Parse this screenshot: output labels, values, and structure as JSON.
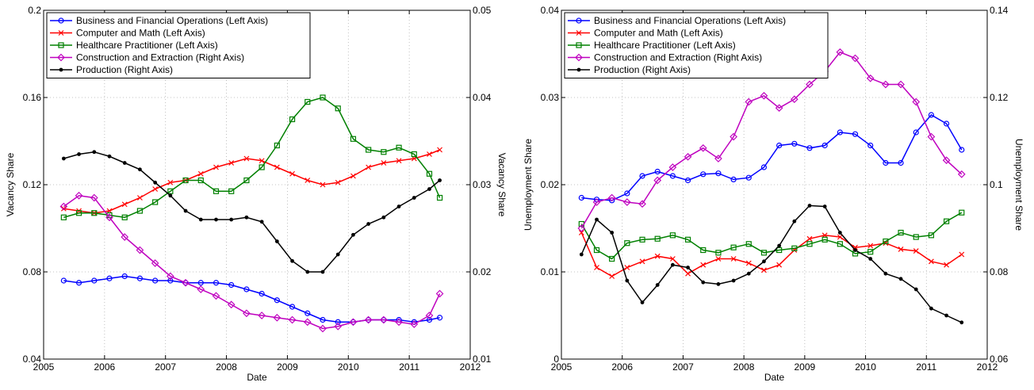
{
  "chart_data": [
    {
      "type": "line",
      "xlabel": "Date",
      "ylabel": "Vacancy Share",
      "y2label": "Vacancy Share",
      "xlim": [
        2005,
        2012
      ],
      "xticks": [
        2005,
        2006,
        2007,
        2008,
        2009,
        2010,
        2011,
        2012
      ],
      "ylim": [
        0.04,
        0.2
      ],
      "yticks": [
        0.04,
        0.08,
        0.12,
        0.16,
        0.2
      ],
      "y2lim": [
        0.01,
        0.05
      ],
      "y2ticks": [
        0.01,
        0.02,
        0.03,
        0.04,
        0.05
      ],
      "grid": true,
      "legend": "upper left",
      "x": [
        2005.33,
        2005.58,
        2005.83,
        2006.08,
        2006.33,
        2006.58,
        2006.83,
        2007.08,
        2007.33,
        2007.58,
        2007.83,
        2008.08,
        2008.33,
        2008.58,
        2008.83,
        2009.08,
        2009.33,
        2009.58,
        2009.83,
        2010.08,
        2010.33,
        2010.58,
        2010.83,
        2011.08,
        2011.33,
        2011.5
      ],
      "series": [
        {
          "name": "Business and Financial Operations (Left Axis)",
          "color": "#0000ff",
          "marker": "circle",
          "axis": "y",
          "values": [
            0.076,
            0.075,
            0.076,
            0.077,
            0.078,
            0.077,
            0.076,
            0.076,
            0.075,
            0.075,
            0.075,
            0.074,
            0.072,
            0.07,
            0.067,
            0.064,
            0.061,
            0.058,
            0.057,
            0.057,
            0.058,
            0.058,
            0.058,
            0.057,
            0.058,
            0.059
          ]
        },
        {
          "name": "Computer and Math (Left Axis)",
          "color": "#ff0000",
          "marker": "x",
          "axis": "y",
          "values": [
            0.109,
            0.108,
            0.107,
            0.108,
            0.111,
            0.114,
            0.118,
            0.121,
            0.122,
            0.125,
            0.128,
            0.13,
            0.132,
            0.131,
            0.128,
            0.125,
            0.122,
            0.12,
            0.121,
            0.124,
            0.128,
            0.13,
            0.131,
            0.132,
            0.134,
            0.136
          ]
        },
        {
          "name": "Healthcare Practitioner (Left Axis)",
          "color": "#008000",
          "marker": "square",
          "axis": "y",
          "values": [
            0.105,
            0.107,
            0.107,
            0.106,
            0.105,
            0.108,
            0.112,
            0.117,
            0.122,
            0.122,
            0.117,
            0.117,
            0.122,
            0.128,
            0.138,
            0.15,
            0.158,
            0.16,
            0.155,
            0.141,
            0.136,
            0.135,
            0.137,
            0.134,
            0.125,
            0.114
          ]
        },
        {
          "name": "Construction and Extraction (Right Axis)",
          "color": "#bf00bf",
          "marker": "diamond",
          "axis": "y2",
          "values": [
            0.0275,
            0.02875,
            0.0285,
            0.02625,
            0.024,
            0.0225,
            0.021,
            0.0195,
            0.01875,
            0.018,
            0.01725,
            0.01625,
            0.01525,
            0.015,
            0.01475,
            0.0145,
            0.01425,
            0.0135,
            0.01375,
            0.01425,
            0.0145,
            0.0145,
            0.01425,
            0.014,
            0.015,
            0.0175
          ]
        },
        {
          "name": "Production (Right Axis)",
          "color": "#000000",
          "marker": "dot",
          "axis": "y2",
          "values": [
            0.033,
            0.0335,
            0.03375,
            0.03325,
            0.0325,
            0.03175,
            0.03025,
            0.02875,
            0.027,
            0.026,
            0.026,
            0.026,
            0.02625,
            0.02575,
            0.0235,
            0.02125,
            0.02,
            0.02,
            0.022,
            0.02425,
            0.0255,
            0.02625,
            0.0275,
            0.0285,
            0.0295,
            0.0305
          ]
        }
      ]
    },
    {
      "type": "line",
      "xlabel": "Date",
      "ylabel": "Unemployment Share",
      "y2label": "Unemployment Share",
      "xlim": [
        2005,
        2012
      ],
      "xticks": [
        2005,
        2006,
        2007,
        2008,
        2009,
        2010,
        2011,
        2012
      ],
      "ylim": [
        0,
        0.04
      ],
      "yticks": [
        0,
        0.01,
        0.02,
        0.03,
        0.04
      ],
      "y2lim": [
        0.06,
        0.14
      ],
      "y2ticks": [
        0.06,
        0.08,
        0.1,
        0.12,
        0.14
      ],
      "grid": true,
      "legend": "upper left",
      "x": [
        2005.33,
        2005.58,
        2005.83,
        2006.08,
        2006.33,
        2006.58,
        2006.83,
        2007.08,
        2007.33,
        2007.58,
        2007.83,
        2008.08,
        2008.33,
        2008.58,
        2008.83,
        2009.08,
        2009.33,
        2009.58,
        2009.83,
        2010.08,
        2010.33,
        2010.58,
        2010.83,
        2011.08,
        2011.33,
        2011.58
      ],
      "series": [
        {
          "name": "Business and Financial Operations (Left Axis)",
          "color": "#0000ff",
          "marker": "circle",
          "axis": "y",
          "values": [
            0.0185,
            0.0183,
            0.0182,
            0.019,
            0.021,
            0.0215,
            0.021,
            0.0205,
            0.0212,
            0.0213,
            0.0206,
            0.0208,
            0.022,
            0.0245,
            0.0247,
            0.0242,
            0.0245,
            0.026,
            0.0258,
            0.0245,
            0.0225,
            0.0225,
            0.026,
            0.028,
            0.027,
            0.024
          ]
        },
        {
          "name": "Computer and Math (Left Axis)",
          "color": "#ff0000",
          "marker": "x",
          "axis": "y",
          "values": [
            0.0145,
            0.0105,
            0.0095,
            0.0105,
            0.0112,
            0.0118,
            0.0115,
            0.0098,
            0.0108,
            0.0115,
            0.0115,
            0.011,
            0.0102,
            0.0108,
            0.0125,
            0.0138,
            0.0142,
            0.014,
            0.0128,
            0.013,
            0.0133,
            0.0126,
            0.0124,
            0.0112,
            0.0108,
            0.012
          ]
        },
        {
          "name": "Healthcare Practitioner (Left Axis)",
          "color": "#008000",
          "marker": "square",
          "axis": "y",
          "values": [
            0.0155,
            0.0125,
            0.0115,
            0.0133,
            0.0137,
            0.0138,
            0.0142,
            0.0137,
            0.0125,
            0.0122,
            0.0128,
            0.0132,
            0.0122,
            0.0125,
            0.0127,
            0.0132,
            0.0137,
            0.0132,
            0.0121,
            0.0123,
            0.0135,
            0.0145,
            0.014,
            0.0142,
            0.0158,
            0.0168
          ]
        },
        {
          "name": "Construction and Extraction (Right Axis)",
          "color": "#bf00bf",
          "marker": "diamond",
          "axis": "y2",
          "values": [
            0.09,
            0.096,
            0.097,
            0.096,
            0.0956,
            0.101,
            0.104,
            0.1064,
            0.1084,
            0.106,
            0.111,
            0.119,
            0.1204,
            0.1176,
            0.1196,
            0.123,
            0.126,
            0.1304,
            0.129,
            0.1244,
            0.123,
            0.123,
            0.119,
            0.111,
            0.1056,
            0.1024
          ]
        },
        {
          "name": "Production (Right Axis)",
          "color": "#000000",
          "marker": "dot",
          "axis": "y2",
          "values": [
            0.084,
            0.092,
            0.089,
            0.078,
            0.073,
            0.077,
            0.0816,
            0.081,
            0.0776,
            0.0772,
            0.078,
            0.0796,
            0.0824,
            0.086,
            0.0916,
            0.0952,
            0.095,
            0.089,
            0.085,
            0.083,
            0.0796,
            0.0784,
            0.076,
            0.0716,
            0.07,
            0.0684
          ]
        }
      ]
    }
  ]
}
